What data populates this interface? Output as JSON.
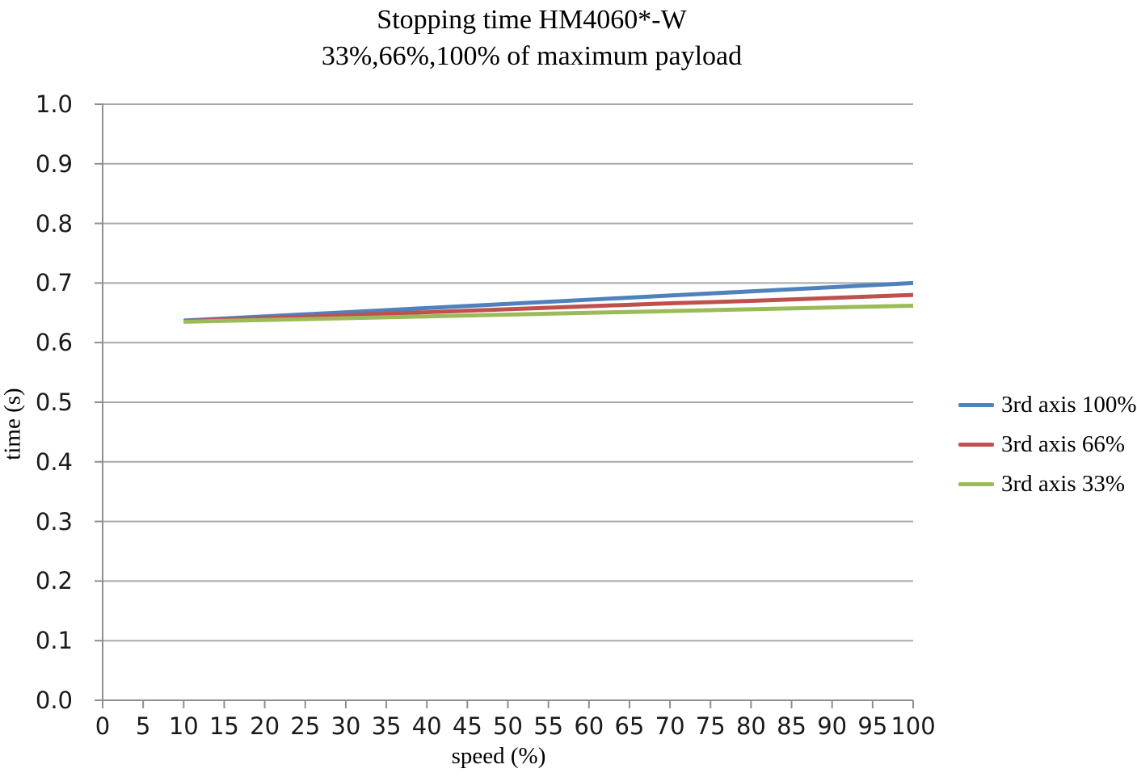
{
  "chart_data": {
    "type": "line",
    "title": "Stopping time HM4060*-W",
    "subtitle": "33%,66%,100% of maximum payload",
    "xlabel": "speed (%)",
    "ylabel": "time (s)",
    "xlim": [
      0,
      100
    ],
    "ylim": [
      0.0,
      1.0
    ],
    "xticks": [
      0,
      5,
      10,
      15,
      20,
      25,
      30,
      35,
      40,
      45,
      50,
      55,
      60,
      65,
      70,
      75,
      80,
      85,
      90,
      95,
      100
    ],
    "xtick_labels": [
      "0",
      "5",
      "10",
      "15",
      "20",
      "25",
      "30",
      "35",
      "40",
      "45",
      "50",
      "55",
      "60",
      "65",
      "70",
      "75",
      "80",
      "85",
      "90",
      "95",
      "100"
    ],
    "ytick_values": [
      0.0,
      0.1,
      0.2,
      0.3,
      0.4,
      0.5,
      0.6,
      0.7,
      0.8,
      0.9,
      1.0
    ],
    "ytick_labels": [
      "0.0",
      "0.1",
      "0.2",
      "0.3",
      "0.4",
      "0.5",
      "0.6",
      "0.7",
      "0.8",
      "0.9",
      "1.0"
    ],
    "grid": "horizontal-gridlines-on",
    "legend_position": "right",
    "x": [
      10,
      20,
      30,
      40,
      50,
      60,
      70,
      80,
      90,
      100
    ],
    "series": [
      {
        "name": "3rd axis 100%",
        "color": "#4F81BD",
        "values": [
          0.637,
          0.644,
          0.651,
          0.658,
          0.665,
          0.672,
          0.679,
          0.686,
          0.693,
          0.7
        ]
      },
      {
        "name": "3rd axis 66%",
        "color": "#C0504D",
        "values": [
          0.636,
          0.641,
          0.646,
          0.651,
          0.656,
          0.661,
          0.666,
          0.67,
          0.675,
          0.68
        ]
      },
      {
        "name": "3rd axis 33%",
        "color": "#9BBB59",
        "values": [
          0.635,
          0.638,
          0.641,
          0.644,
          0.647,
          0.65,
          0.653,
          0.656,
          0.659,
          0.662
        ]
      }
    ]
  },
  "colors": {
    "background": "#ffffff",
    "gridline": "#A8A8A8",
    "axis": "#8F8F8F",
    "text": "#000000",
    "series_blue": "#4F81BD",
    "series_red": "#C0504D",
    "series_green": "#9BBB59"
  }
}
